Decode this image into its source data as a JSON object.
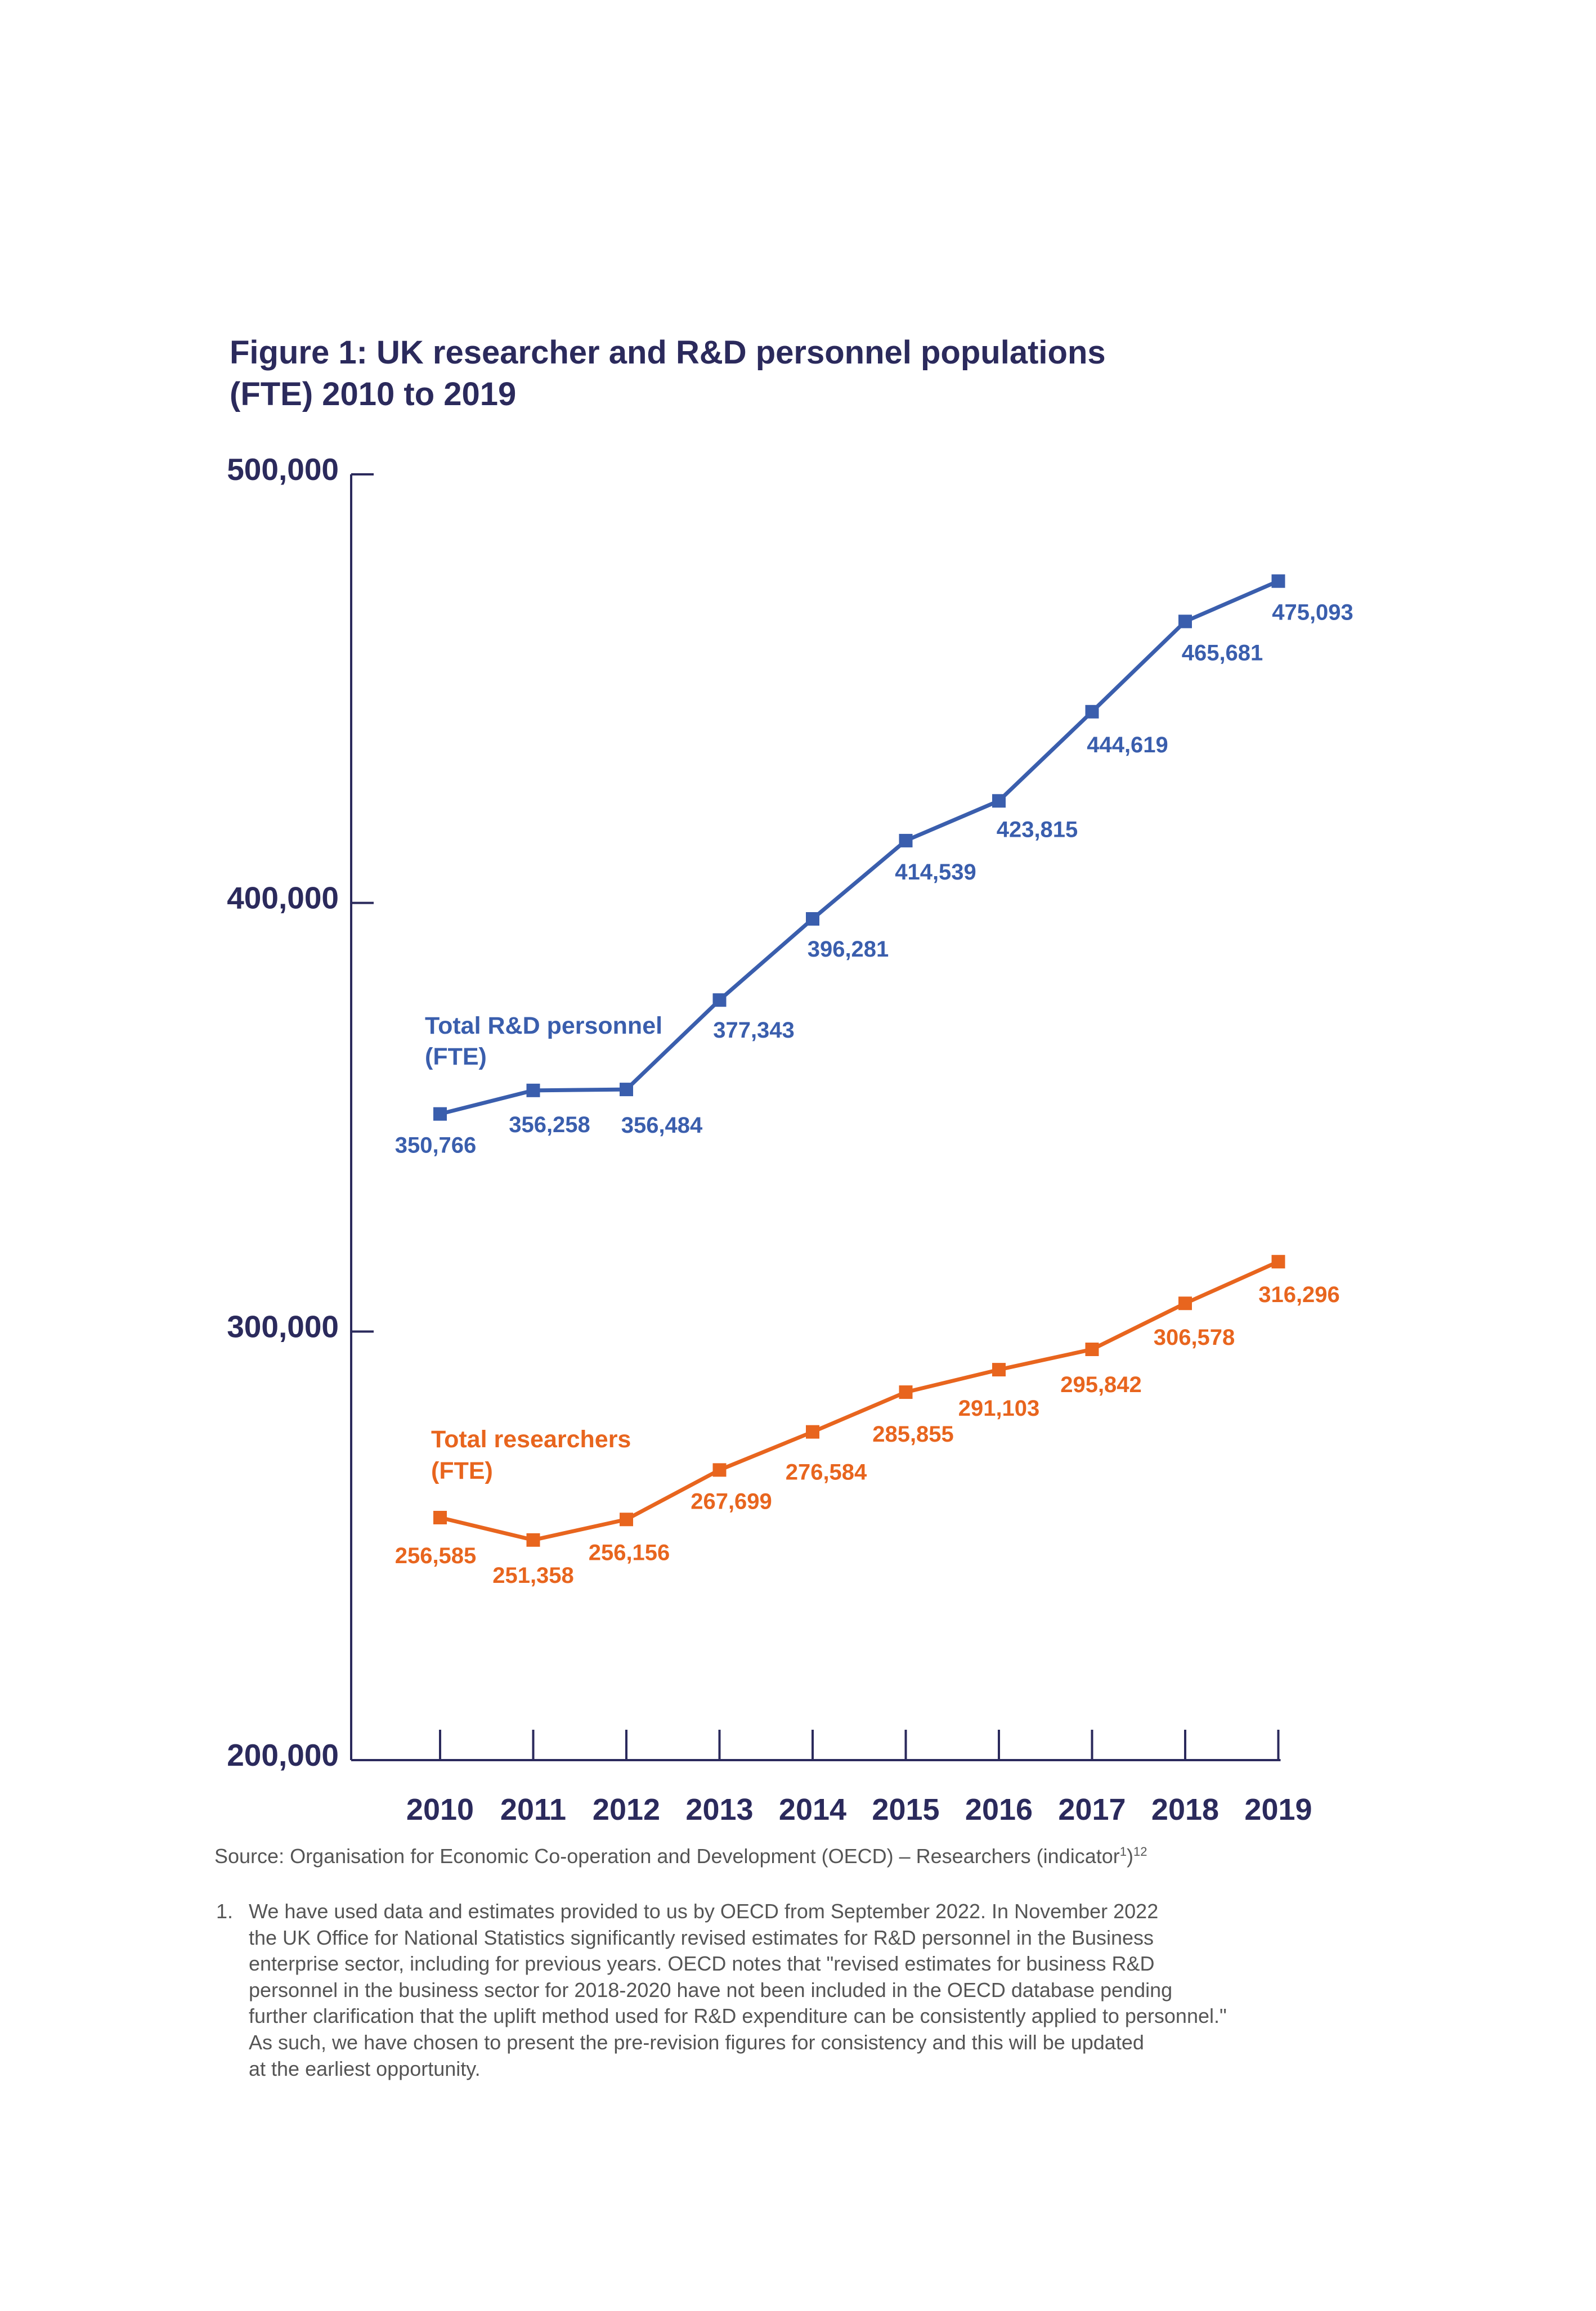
{
  "chart_data": {
    "type": "line",
    "title": "Figure 1: UK researcher and R&D personnel populations (FTE) 2010 to 2019",
    "title_lines": [
      "Figure 1: UK researcher and R&D personnel populations",
      "(FTE) 2010 to 2019"
    ],
    "categories": [
      "2010",
      "2011",
      "2012",
      "2013",
      "2014",
      "2015",
      "2016",
      "2017",
      "2018",
      "2019"
    ],
    "ylim": [
      200000,
      500000
    ],
    "yticks": [
      200000,
      300000,
      400000,
      500000
    ],
    "ytick_labels": [
      "200,000",
      "300,000",
      "400,000",
      "500,000"
    ],
    "grid": false,
    "legend": "inline labels",
    "series": [
      {
        "name": "Total R&D personnel (FTE)",
        "name_lines": [
          "Total R&D personnel",
          "(FTE)"
        ],
        "color": "#3a5ead",
        "marker": "square",
        "values": [
          350766,
          356258,
          356484,
          377343,
          396281,
          414539,
          423815,
          444619,
          465681,
          475093
        ],
        "labels": [
          "350,766",
          "356,258",
          "356,484",
          "377,343",
          "396,281",
          "414,539",
          "423,815",
          "444,619",
          "465,681",
          "475,093"
        ]
      },
      {
        "name": "Total researchers (FTE)",
        "name_lines": [
          "Total researchers",
          "(FTE)"
        ],
        "color": "#e8651e",
        "marker": "square",
        "values": [
          256585,
          251358,
          256156,
          267699,
          276584,
          285855,
          291103,
          295842,
          306578,
          316296
        ],
        "labels": [
          "256,585",
          "251,358",
          "256,156",
          "267,699",
          "276,584",
          "285,855",
          "291,103",
          "295,842",
          "306,578",
          "316,296"
        ]
      }
    ],
    "axis_color": "#2b2a5c"
  },
  "source": {
    "text": "Source: Organisation for Economic Co-operation and Development (OECD) – Researchers (indicator",
    "sup1": "1",
    "close": ")",
    "sup2": "12"
  },
  "footnote": {
    "number": "1.",
    "lines": [
      "We have used data and estimates provided to us by OECD from September 2022. In November 2022",
      "the UK Office for National Statistics significantly revised estimates for R&D personnel in the Business",
      "enterprise sector, including for previous years. OECD notes that \"revised estimates for business R&D",
      "personnel in the business sector for 2018-2020 have not been included in the OECD database pending",
      "further clarification that the uplift method used for R&D expenditure can be consistently applied to personnel.\"",
      "As such, we have chosen to present the pre-revision figures for consistency and this will be updated",
      "at the earliest opportunity."
    ]
  }
}
